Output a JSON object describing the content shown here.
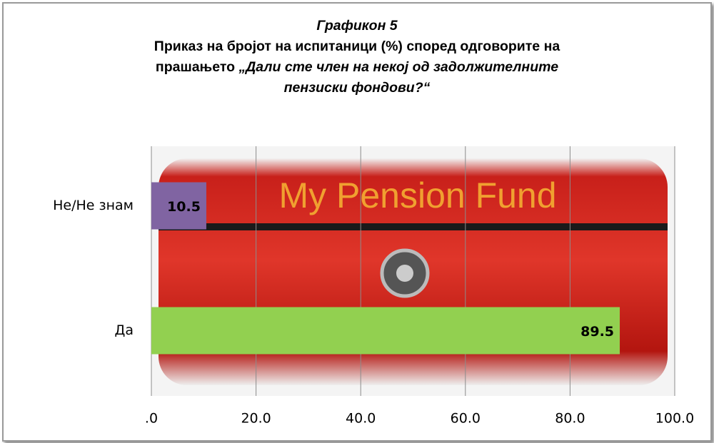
{
  "chart_data": {
    "type": "barh",
    "title": {
      "label": "Графикон 5",
      "text": "Приказ на бројот на испитаници (%) според одговорите на прашањето",
      "question": "„Дали сте член на некој од задолжителните пензиски фондови?“"
    },
    "background_text": "My Pension Fund",
    "categories": [
      "Не/Не знам",
      "Да"
    ],
    "values": [
      10.5,
      89.5
    ],
    "colors": [
      "#8064a2",
      "#92d050"
    ],
    "xlim": [
      0,
      100
    ],
    "xticks": [
      {
        "value": 0,
        "label": ".0"
      },
      {
        "value": 20,
        "label": "20.0"
      },
      {
        "value": 40,
        "label": "40.0"
      },
      {
        "value": 60,
        "label": "60.0"
      },
      {
        "value": 80,
        "label": "80.0"
      },
      {
        "value": 100,
        "label": "100.0"
      }
    ],
    "grid": true
  }
}
